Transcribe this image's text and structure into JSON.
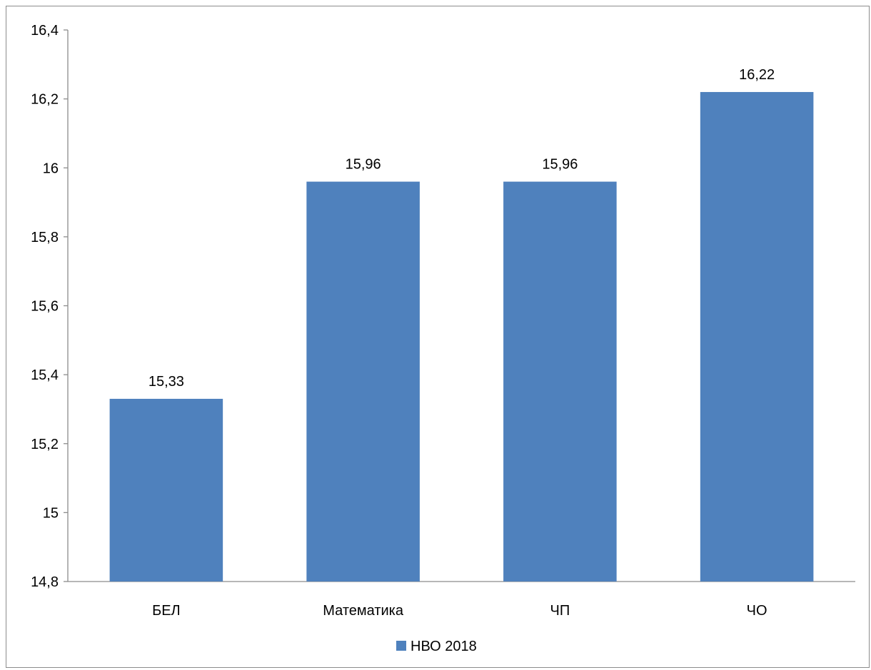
{
  "chart_data": {
    "type": "bar",
    "categories": [
      "БЕЛ",
      "Математика",
      "ЧП",
      "ЧО"
    ],
    "series": [
      {
        "name": "НВО 2018",
        "values": [
          15.33,
          15.96,
          15.96,
          16.22
        ],
        "color": "#4f81bd"
      }
    ],
    "data_labels": [
      "15,33",
      "15,96",
      "15,96",
      "16,22"
    ],
    "yticks": [
      "14,8",
      "15",
      "15,2",
      "15,4",
      "15,6",
      "15,8",
      "16",
      "16,2",
      "16,4"
    ],
    "ylim": [
      14.8,
      16.4
    ],
    "title": "",
    "xlabel": "",
    "ylabel": "",
    "grid": false,
    "legend_position": "bottom"
  }
}
